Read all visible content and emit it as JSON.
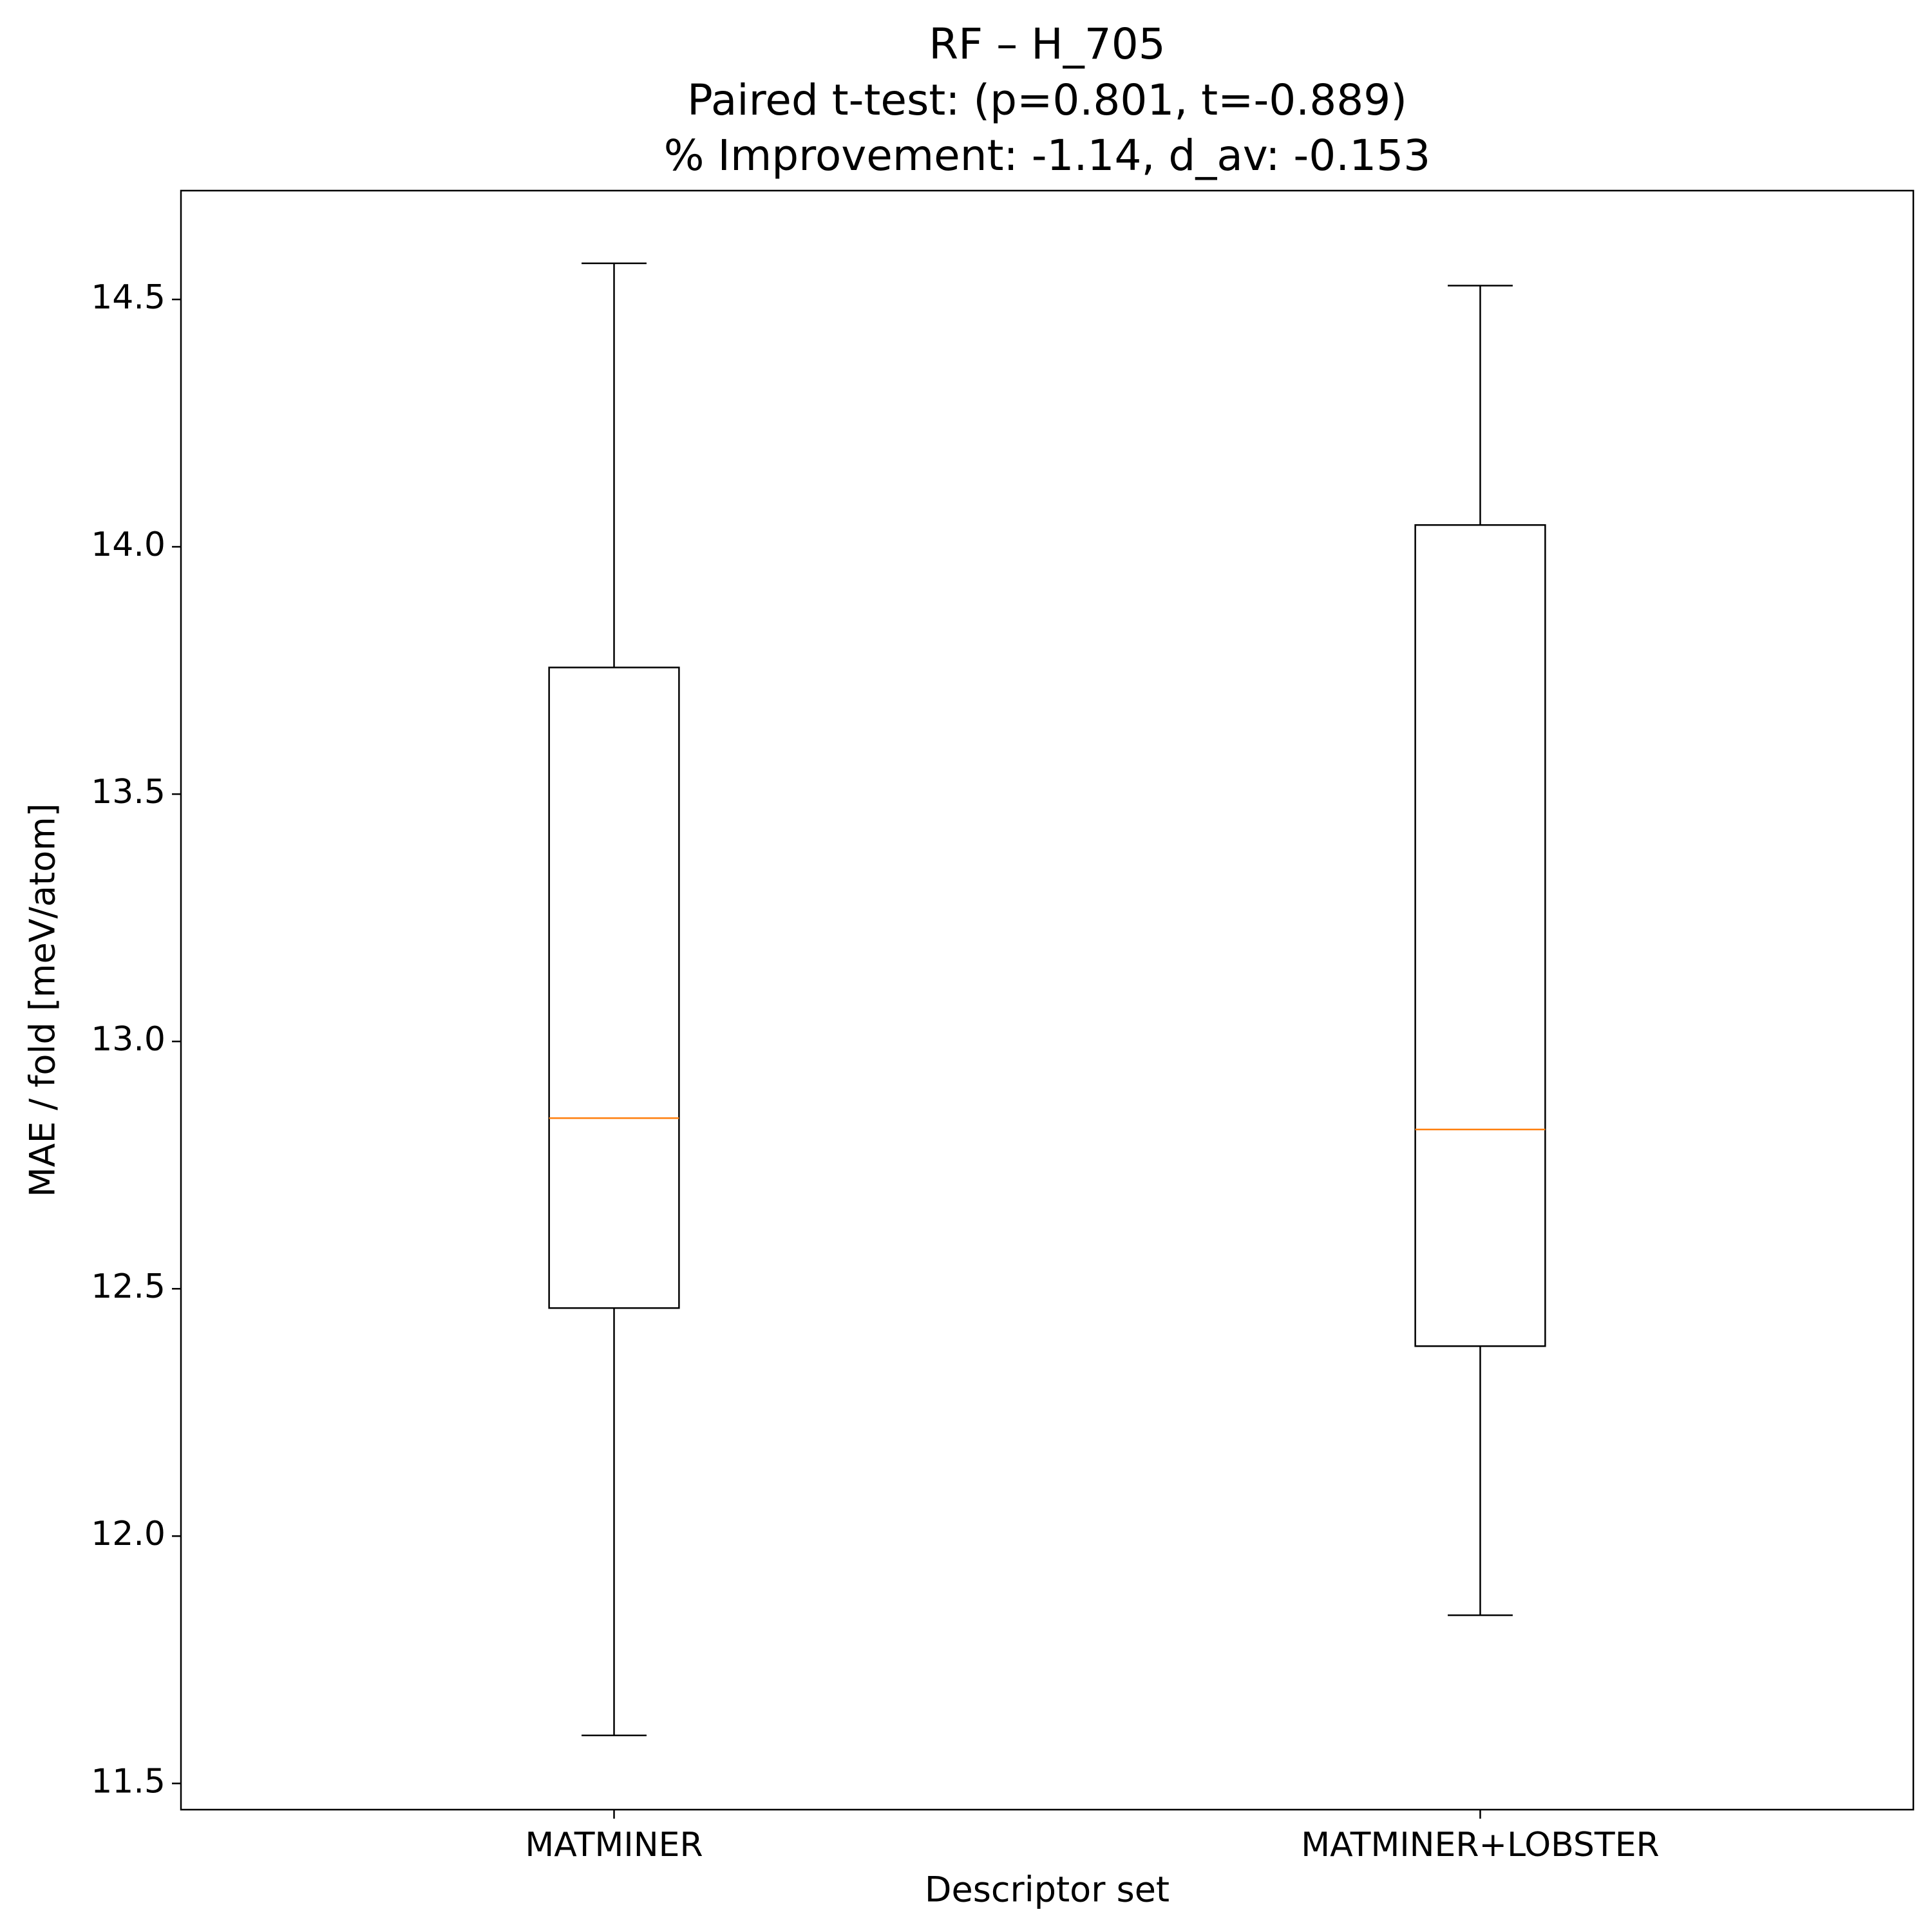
{
  "chart_data": {
    "type": "box",
    "title": [
      "RF – H_705",
      "Paired t-test: (p=0.801, t=-0.889)",
      "% Improvement: -1.14, d_av: -0.153"
    ],
    "xlabel": "Descriptor set",
    "ylabel": "MAE / fold [meV/atom]",
    "categories": [
      "MATMINER",
      "MATMINER+LOBSTER"
    ],
    "stats": [
      {
        "low": 11.597,
        "q1": 12.461,
        "median": 12.845,
        "q3": 13.756,
        "high": 14.573
      },
      {
        "low": 11.84,
        "q1": 12.384,
        "median": 12.822,
        "q3": 14.044,
        "high": 14.528
      }
    ],
    "color": "#000000",
    "median_color": "#ff7f0e",
    "ylim": [
      11.447,
      14.72
    ],
    "yticks": [
      {
        "value": 11.5,
        "label": "11.5"
      },
      {
        "value": 12,
        "label": "12.0"
      },
      {
        "value": 12.5,
        "label": "12.5"
      },
      {
        "value": 13,
        "label": "13.0"
      },
      {
        "value": 13.5,
        "label": "13.5"
      },
      {
        "value": 14,
        "label": "14.0"
      },
      {
        "value": 14.5,
        "label": "14.5"
      }
    ]
  }
}
